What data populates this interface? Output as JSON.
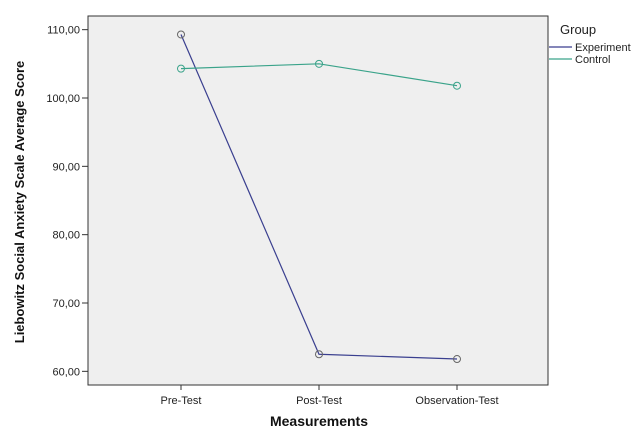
{
  "chart_data": {
    "type": "line",
    "categories": [
      "Pre-Test",
      "Post-Test",
      "Observation-Test"
    ],
    "series": [
      {
        "name": "Experiment",
        "values": [
          109.3,
          62.5,
          61.8
        ],
        "color": "#3a3f8f"
      },
      {
        "name": "Control",
        "values": [
          104.3,
          105.0,
          101.8
        ],
        "color": "#3aa38a"
      }
    ],
    "xlabel": "Measurements",
    "ylabel": "Liebowitz Social Anxiety Scale Average Score",
    "ylim": [
      58,
      112
    ],
    "yticks": [
      60,
      70,
      80,
      90,
      100,
      110
    ],
    "ytick_labels": [
      "60,00",
      "70,00",
      "80,00",
      "90,00",
      "100,00",
      "110,00"
    ],
    "legend_title": "Group",
    "legend_position": "right",
    "plot_background": "#efefef",
    "grid": false
  }
}
